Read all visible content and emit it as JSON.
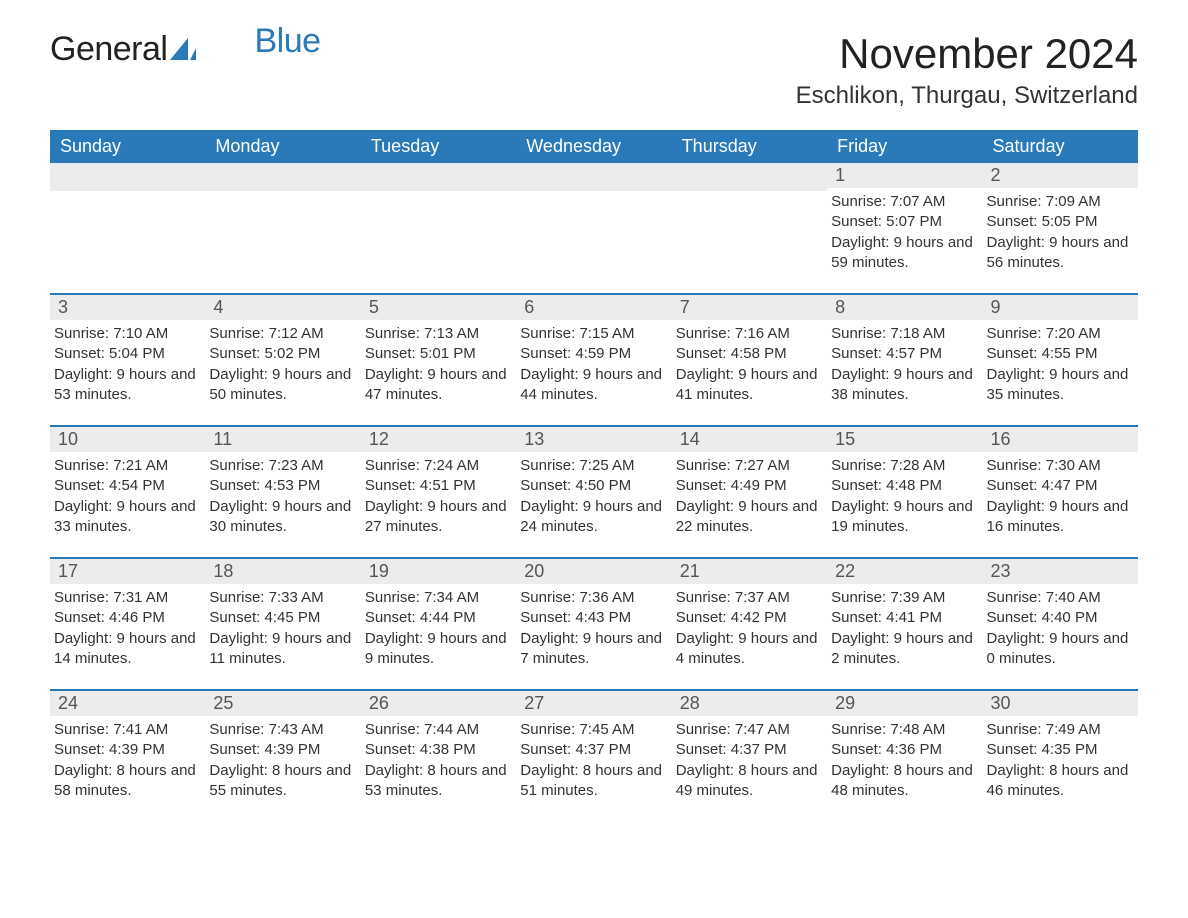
{
  "logo": {
    "text_primary": "General",
    "text_secondary": "Blue",
    "primary_color": "#222222",
    "secondary_color": "#2a7ab9",
    "icon_color": "#2a7ab9"
  },
  "header": {
    "month_title": "November 2024",
    "location": "Eschlikon, Thurgau, Switzerland"
  },
  "styling": {
    "header_bg": "#2a7ab9",
    "header_text_color": "#ffffff",
    "daynum_bg": "#ececec",
    "daynum_color": "#555555",
    "body_text_color": "#333333",
    "row_border_color": "#2a7ab9",
    "page_bg": "#ffffff",
    "title_fontsize": 42,
    "location_fontsize": 24,
    "weekday_fontsize": 18,
    "daynum_fontsize": 18,
    "body_fontsize": 15
  },
  "weekdays": [
    "Sunday",
    "Monday",
    "Tuesday",
    "Wednesday",
    "Thursday",
    "Friday",
    "Saturday"
  ],
  "labels": {
    "sunrise": "Sunrise: ",
    "sunset": "Sunset: ",
    "daylight": "Daylight: "
  },
  "weeks": [
    [
      {
        "empty": true
      },
      {
        "empty": true
      },
      {
        "empty": true
      },
      {
        "empty": true
      },
      {
        "empty": true
      },
      {
        "day": "1",
        "sunrise": "7:07 AM",
        "sunset": "5:07 PM",
        "daylight": "9 hours and 59 minutes."
      },
      {
        "day": "2",
        "sunrise": "7:09 AM",
        "sunset": "5:05 PM",
        "daylight": "9 hours and 56 minutes."
      }
    ],
    [
      {
        "day": "3",
        "sunrise": "7:10 AM",
        "sunset": "5:04 PM",
        "daylight": "9 hours and 53 minutes."
      },
      {
        "day": "4",
        "sunrise": "7:12 AM",
        "sunset": "5:02 PM",
        "daylight": "9 hours and 50 minutes."
      },
      {
        "day": "5",
        "sunrise": "7:13 AM",
        "sunset": "5:01 PM",
        "daylight": "9 hours and 47 minutes."
      },
      {
        "day": "6",
        "sunrise": "7:15 AM",
        "sunset": "4:59 PM",
        "daylight": "9 hours and 44 minutes."
      },
      {
        "day": "7",
        "sunrise": "7:16 AM",
        "sunset": "4:58 PM",
        "daylight": "9 hours and 41 minutes."
      },
      {
        "day": "8",
        "sunrise": "7:18 AM",
        "sunset": "4:57 PM",
        "daylight": "9 hours and 38 minutes."
      },
      {
        "day": "9",
        "sunrise": "7:20 AM",
        "sunset": "4:55 PM",
        "daylight": "9 hours and 35 minutes."
      }
    ],
    [
      {
        "day": "10",
        "sunrise": "7:21 AM",
        "sunset": "4:54 PM",
        "daylight": "9 hours and 33 minutes."
      },
      {
        "day": "11",
        "sunrise": "7:23 AM",
        "sunset": "4:53 PM",
        "daylight": "9 hours and 30 minutes."
      },
      {
        "day": "12",
        "sunrise": "7:24 AM",
        "sunset": "4:51 PM",
        "daylight": "9 hours and 27 minutes."
      },
      {
        "day": "13",
        "sunrise": "7:25 AM",
        "sunset": "4:50 PM",
        "daylight": "9 hours and 24 minutes."
      },
      {
        "day": "14",
        "sunrise": "7:27 AM",
        "sunset": "4:49 PM",
        "daylight": "9 hours and 22 minutes."
      },
      {
        "day": "15",
        "sunrise": "7:28 AM",
        "sunset": "4:48 PM",
        "daylight": "9 hours and 19 minutes."
      },
      {
        "day": "16",
        "sunrise": "7:30 AM",
        "sunset": "4:47 PM",
        "daylight": "9 hours and 16 minutes."
      }
    ],
    [
      {
        "day": "17",
        "sunrise": "7:31 AM",
        "sunset": "4:46 PM",
        "daylight": "9 hours and 14 minutes."
      },
      {
        "day": "18",
        "sunrise": "7:33 AM",
        "sunset": "4:45 PM",
        "daylight": "9 hours and 11 minutes."
      },
      {
        "day": "19",
        "sunrise": "7:34 AM",
        "sunset": "4:44 PM",
        "daylight": "9 hours and 9 minutes."
      },
      {
        "day": "20",
        "sunrise": "7:36 AM",
        "sunset": "4:43 PM",
        "daylight": "9 hours and 7 minutes."
      },
      {
        "day": "21",
        "sunrise": "7:37 AM",
        "sunset": "4:42 PM",
        "daylight": "9 hours and 4 minutes."
      },
      {
        "day": "22",
        "sunrise": "7:39 AM",
        "sunset": "4:41 PM",
        "daylight": "9 hours and 2 minutes."
      },
      {
        "day": "23",
        "sunrise": "7:40 AM",
        "sunset": "4:40 PM",
        "daylight": "9 hours and 0 minutes."
      }
    ],
    [
      {
        "day": "24",
        "sunrise": "7:41 AM",
        "sunset": "4:39 PM",
        "daylight": "8 hours and 58 minutes."
      },
      {
        "day": "25",
        "sunrise": "7:43 AM",
        "sunset": "4:39 PM",
        "daylight": "8 hours and 55 minutes."
      },
      {
        "day": "26",
        "sunrise": "7:44 AM",
        "sunset": "4:38 PM",
        "daylight": "8 hours and 53 minutes."
      },
      {
        "day": "27",
        "sunrise": "7:45 AM",
        "sunset": "4:37 PM",
        "daylight": "8 hours and 51 minutes."
      },
      {
        "day": "28",
        "sunrise": "7:47 AM",
        "sunset": "4:37 PM",
        "daylight": "8 hours and 49 minutes."
      },
      {
        "day": "29",
        "sunrise": "7:48 AM",
        "sunset": "4:36 PM",
        "daylight": "8 hours and 48 minutes."
      },
      {
        "day": "30",
        "sunrise": "7:49 AM",
        "sunset": "4:35 PM",
        "daylight": "8 hours and 46 minutes."
      }
    ]
  ]
}
